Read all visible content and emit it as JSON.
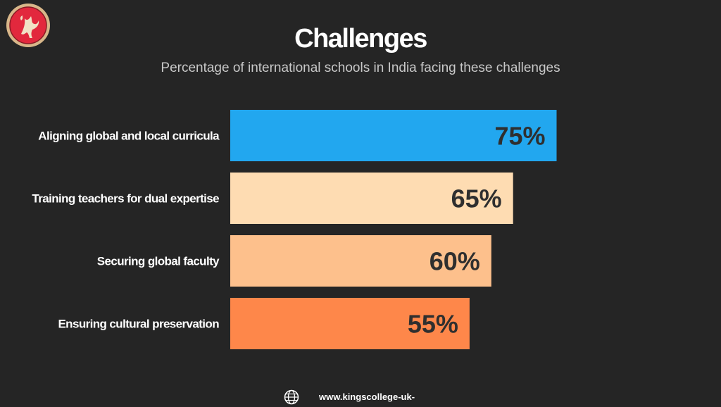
{
  "header": {
    "title": "Challenges",
    "subtitle": "Percentage of international schools in India facing these challenges"
  },
  "chart_data": {
    "type": "bar",
    "orientation": "horizontal",
    "categories": [
      "Aligning global and local curricula",
      "Training teachers for dual expertise",
      "Securing global faculty",
      "Ensuring cultural preservation"
    ],
    "values": [
      75,
      65,
      60,
      55
    ],
    "data_labels": [
      "75%",
      "65%",
      "60%",
      "55%"
    ],
    "colors": [
      "#22a7ef",
      "#fedcb2",
      "#fdc08c",
      "#fe874a"
    ],
    "xlim": [
      0,
      100
    ],
    "grid": false,
    "title": "",
    "xlabel": "",
    "ylabel": ""
  },
  "footer": {
    "website": "www.kingscollege-uk-"
  },
  "icons": {
    "logo": "liver-bird-crest-icon",
    "footer": "globe-icon"
  }
}
